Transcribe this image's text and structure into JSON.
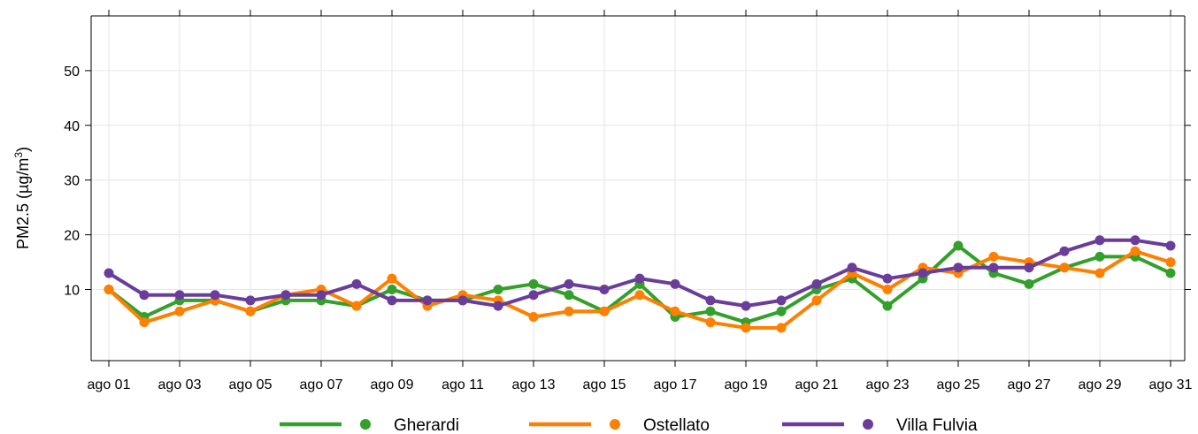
{
  "chart_data": {
    "type": "line",
    "ylabel_main": "PM2.5 (",
    "ylabel_unit": "µg/m",
    "ylabel_sup": "3",
    "ylabel_close": ")",
    "ylim": [
      -3,
      60
    ],
    "xlim": [
      0.5,
      31.4
    ],
    "yticks": [
      10,
      20,
      30,
      40,
      50
    ],
    "xtick_labels": [
      "ago 01",
      "ago 03",
      "ago 05",
      "ago 07",
      "ago 09",
      "ago 11",
      "ago 13",
      "ago 15",
      "ago 17",
      "ago 19",
      "ago 21",
      "ago 23",
      "ago 25",
      "ago 27",
      "ago 29",
      "ago 31"
    ],
    "xtick_days": [
      1,
      3,
      5,
      7,
      9,
      11,
      13,
      15,
      17,
      19,
      21,
      23,
      25,
      27,
      29,
      31
    ],
    "grid": true,
    "legend_position": "bottom",
    "x": [
      1,
      2,
      3,
      4,
      5,
      6,
      7,
      8,
      9,
      10,
      11,
      12,
      13,
      14,
      15,
      16,
      17,
      18,
      19,
      20,
      21,
      22,
      23,
      24,
      25,
      26,
      27,
      28,
      29,
      30,
      31
    ],
    "series": [
      {
        "name": "Gherardi",
        "color": "#33a02c",
        "values": [
          10,
          5,
          8,
          8,
          6,
          8,
          8,
          7,
          10,
          8,
          8,
          10,
          11,
          9,
          6,
          11,
          5,
          6,
          4,
          6,
          10,
          12,
          7,
          12,
          18,
          13,
          11,
          14,
          16,
          16,
          13
        ]
      },
      {
        "name": "Ostellato",
        "color": "#ff7f00",
        "values": [
          10,
          4,
          6,
          8,
          6,
          9,
          10,
          7,
          12,
          7,
          9,
          8,
          5,
          6,
          6,
          9,
          6,
          4,
          3,
          3,
          8,
          13,
          10,
          14,
          13,
          16,
          15,
          14,
          13,
          17,
          15
        ]
      },
      {
        "name": "Villa Fulvia",
        "color": "#6a3d9a",
        "values": [
          13,
          9,
          9,
          9,
          8,
          9,
          9,
          11,
          8,
          8,
          8,
          7,
          9,
          11,
          10,
          12,
          11,
          8,
          7,
          8,
          11,
          14,
          12,
          13,
          14,
          14,
          14,
          17,
          19,
          19,
          18
        ]
      }
    ]
  }
}
